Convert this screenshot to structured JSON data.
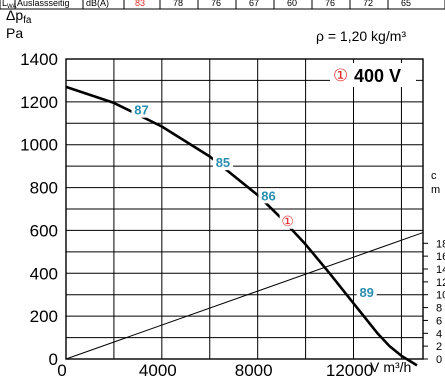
{
  "header_row": {
    "symbol": "L",
    "symbol_sub": "WA",
    "label": "Auslassseitig",
    "unit": "dB(A)",
    "values": [
      "83",
      "78",
      "76",
      "67",
      "60",
      "76",
      "72",
      "65"
    ]
  },
  "chart_data": {
    "type": "line",
    "ylabel_symbol": "Δp",
    "ylabel_sub": "fa",
    "ylabel_unit": "Pa",
    "xlabel": "V m³/h",
    "xlabel_symbol": "V",
    "xlabel_unit": "m³/h",
    "density": "ρ = 1,20 kg/m³",
    "xlim": [
      0,
      14900
    ],
    "ylim": [
      0,
      1400
    ],
    "xticks": [
      0,
      4000,
      8000,
      12000
    ],
    "xtick_labels": [
      "0",
      "4000",
      "8000",
      "12000"
    ],
    "yticks": [
      0,
      200,
      400,
      600,
      800,
      1000,
      1200,
      1400
    ],
    "ytick_labels": [
      "0",
      "200",
      "400",
      "600",
      "800",
      "1000",
      "1200",
      "1400"
    ],
    "grid": true,
    "series": [
      {
        "name": "400 V",
        "marker": "①",
        "x": [
          0,
          2000,
          4000,
          6000,
          8000,
          9000,
          10000,
          11000,
          12000,
          13000,
          13500,
          14000,
          14650
        ],
        "y": [
          1270,
          1195,
          1085,
          945,
          765,
          655,
          535,
          400,
          260,
          120,
          60,
          15,
          -30
        ]
      },
      {
        "name": "",
        "x": [
          0,
          14900
        ],
        "y": [
          0,
          590
        ]
      }
    ],
    "efficiency_labels": [
      {
        "text": "87",
        "x": 3150,
        "y": 1145
      },
      {
        "text": "85",
        "x": 6550,
        "y": 900
      },
      {
        "text": "86",
        "x": 8450,
        "y": 745
      },
      {
        "text": "89",
        "x": 12550,
        "y": 295
      }
    ],
    "operating_point": {
      "text": "①",
      "x": 9250,
      "y": 645
    },
    "right_axis": {
      "label_lines": [
        "c",
        "m"
      ],
      "ticks": [
        "0",
        "2",
        "4",
        "6",
        "8",
        "10",
        "12",
        "14",
        "16",
        "18"
      ],
      "tick_values": [
        0,
        60,
        120,
        180,
        240,
        300,
        360,
        420,
        480,
        540
      ]
    },
    "colors": {
      "curve": "#000000",
      "efficiency_label": "#2a8fae",
      "marker": "#e32d2d",
      "grid": "#000000"
    }
  }
}
